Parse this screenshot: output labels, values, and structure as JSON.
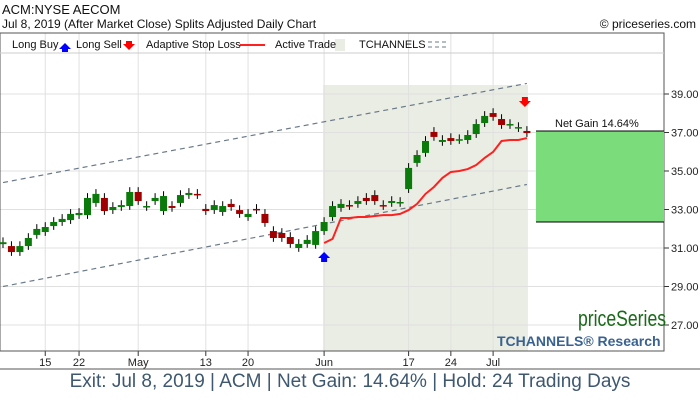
{
  "header": {
    "symbol": "ACM:NYSE AECOM",
    "subtitle": "Jul 8, 2019 (After Market Close)  Splits Adjusted Daily Chart",
    "copyright": "© priceseries.com"
  },
  "legend": {
    "long_buy": "Long Buy",
    "long_sell": "Long Sell",
    "stop_loss": "Adaptive Stop Loss",
    "active_trade": "Active Trade",
    "tchannels": "TCHANNELS"
  },
  "branding": {
    "logo": "priceSeries",
    "research": "TCHANNELS® Research"
  },
  "footer": "Exit: Jul 8, 2019 | ACM | Net Gain: 14.64% | Hold: 24 Trading Days",
  "colors": {
    "up": "#0a7a0a",
    "down": "#a00000",
    "stop": "#ff2020",
    "active": "#eaede3",
    "gain": "#7adc7a",
    "buy": "#0000ff",
    "sell": "#ff0000",
    "channel": "#6a7a8a"
  },
  "chart_data": {
    "type": "candlestick",
    "title": "ACM:NYSE AECOM",
    "ylim": [
      26,
      39.5
    ],
    "yticks": [
      27,
      29,
      31,
      33,
      35,
      37,
      39
    ],
    "ytick_labels": [
      "27.00",
      "29.00",
      "31.00",
      "33.00",
      "35.00",
      "37.00",
      "39.00"
    ],
    "xticks": [
      {
        "label": "15",
        "index": 5
      },
      {
        "label": "22",
        "index": 9
      },
      {
        "label": "May",
        "index": 16
      },
      {
        "label": "13",
        "index": 24
      },
      {
        "label": "20",
        "index": 29
      },
      {
        "label": "Jun",
        "index": 38
      },
      {
        "label": "17",
        "index": 48
      },
      {
        "label": "24",
        "index": 53
      },
      {
        "label": "Jul",
        "index": 58
      }
    ],
    "candles": [
      [
        31.2,
        31.3
      ],
      [
        31.1,
        30.79
      ],
      [
        30.79,
        31.1
      ],
      [
        31.1,
        31.52
      ],
      [
        31.68,
        31.99
      ],
      [
        31.83,
        32.09
      ],
      [
        32.14,
        32.35
      ],
      [
        32.35,
        32.51
      ],
      [
        32.45,
        32.77
      ],
      [
        32.71,
        32.82
      ],
      [
        32.71,
        33.6
      ],
      [
        33.34,
        33.81
      ],
      [
        33.6,
        32.92
      ],
      [
        32.97,
        33.13
      ],
      [
        33.13,
        33.23
      ],
      [
        33.18,
        33.91
      ],
      [
        33.91,
        33.44
      ],
      [
        33.13,
        33.18
      ],
      [
        33.44,
        33.6
      ],
      [
        32.92,
        33.7
      ],
      [
        33.18,
        33.08
      ],
      [
        33.34,
        33.75
      ],
      [
        33.75,
        33.86
      ],
      [
        33.81,
        33.75
      ],
      [
        33.03,
        32.92
      ],
      [
        32.97,
        33.23
      ],
      [
        32.87,
        33.18
      ],
      [
        33.29,
        33.13
      ],
      [
        32.97,
        32.77
      ],
      [
        32.61,
        32.77
      ],
      [
        33.03,
        32.97
      ],
      [
        32.77,
        32.3
      ],
      [
        31.88,
        31.52
      ],
      [
        31.78,
        31.52
      ],
      [
        31.57,
        31.21
      ],
      [
        31.0,
        31.21
      ],
      [
        31.21,
        31.42
      ],
      [
        31.16,
        31.88
      ],
      [
        31.88,
        32.35
      ],
      [
        32.61,
        33.18
      ],
      [
        33.08,
        33.29
      ],
      [
        33.23,
        33.18
      ],
      [
        33.29,
        33.44
      ],
      [
        33.6,
        33.44
      ],
      [
        33.75,
        33.44
      ],
      [
        33.23,
        33.18
      ],
      [
        33.34,
        33.44
      ],
      [
        33.34,
        33.39
      ],
      [
        34.06,
        35.16
      ],
      [
        35.42,
        35.83
      ],
      [
        35.94,
        36.56
      ],
      [
        37.03,
        36.77
      ],
      [
        36.51,
        36.61
      ],
      [
        36.71,
        36.56
      ],
      [
        36.61,
        36.65
      ],
      [
        36.61,
        36.87
      ],
      [
        36.92,
        37.44
      ],
      [
        37.49,
        37.86
      ],
      [
        38.01,
        37.81
      ],
      [
        37.7,
        37.39
      ],
      [
        37.39,
        37.44
      ],
      [
        37.23,
        37.28
      ],
      [
        37.08,
        36.97
      ]
    ],
    "stop_loss": {
      "start_index": 38,
      "values": [
        31.26,
        31.47,
        32.56,
        32.56,
        32.61,
        32.61,
        32.66,
        32.71,
        32.71,
        32.77,
        32.97,
        33.29,
        33.81,
        34.17,
        34.64,
        34.95,
        35.0,
        35.1,
        35.31,
        35.68,
        35.99,
        36.56,
        36.61,
        36.61,
        36.71
      ]
    },
    "entry": {
      "index": 38,
      "label": "Long Buy"
    },
    "exit": {
      "index": 62,
      "label": "Long Sell"
    },
    "net_gain": {
      "label": "Net Gain 14.64%",
      "low": 32.35,
      "high": 37.08
    },
    "channel_upper": [
      [
        0,
        34.4
      ],
      [
        62,
        39.55
      ]
    ],
    "channel_lower": [
      [
        0,
        29.0
      ],
      [
        62,
        34.3
      ]
    ]
  }
}
